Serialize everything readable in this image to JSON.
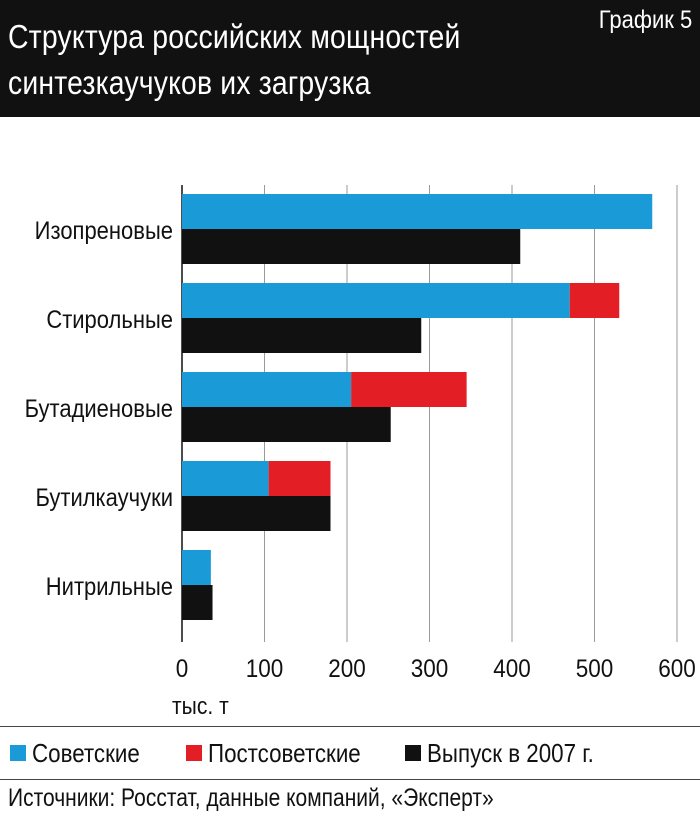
{
  "header": {
    "title_line1": "Структура российских мощностей",
    "title_line2": "синтезкаучуков их загрузка",
    "badge": "График 5"
  },
  "chart_data": {
    "type": "bar",
    "orientation": "horizontal",
    "stacked_capacity": true,
    "categories": [
      "Изопреновые",
      "Стирольные",
      "Бутадиеновые",
      "Бутилкаучуки",
      "Нитрильные"
    ],
    "series": [
      {
        "name": "Советские",
        "group": "capacity",
        "color": "#1a9ad6",
        "values": [
          570,
          470,
          205,
          105,
          35
        ]
      },
      {
        "name": "Постсоветские",
        "group": "capacity",
        "color": "#e31e24",
        "values": [
          0,
          60,
          140,
          75,
          0
        ]
      },
      {
        "name": "Выпуск в 2007 г.",
        "group": "output",
        "color": "#111111",
        "values": [
          410,
          290,
          253,
          180,
          37
        ]
      }
    ],
    "xlim": [
      0,
      600
    ],
    "xticks": [
      "0",
      "100",
      "200",
      "300",
      "400",
      "500",
      "600"
    ],
    "xlabel": "тыс. т",
    "grid": true,
    "legend_position": "bottom"
  },
  "footer": {
    "source": "Источники: Росстат, данные компаний, «Эксперт»"
  }
}
